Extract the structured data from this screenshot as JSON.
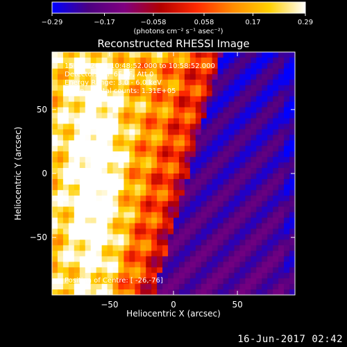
{
  "chart_data": {
    "type": "heatmap",
    "title": "Reconstructed RHESSI Image",
    "xlabel": "Heliocentric X (arcsec)",
    "ylabel": "Heliocentric Y (arcsec)",
    "xlim": [
      -95,
      95
    ],
    "ylim": [
      -95,
      95
    ],
    "x_ticks": [
      -50,
      0,
      50
    ],
    "y_ticks": [
      -50,
      0,
      50
    ],
    "x_tick_labels": [
      "−50",
      "0",
      "50"
    ],
    "y_tick_labels": [
      "−50",
      "0",
      "50"
    ],
    "colorbar": {
      "range": [
        -0.29,
        0.29
      ],
      "ticks": [
        -0.29,
        -0.17,
        -0.058,
        0.058,
        0.17,
        0.29
      ],
      "tick_labels": [
        "−0.29",
        "−0.17",
        "−0.058",
        "0.058",
        "0.17",
        "0.29"
      ],
      "unit_label": "(photons cm⁻² s⁻¹ asec⁻²)",
      "colors": [
        "#0000ff",
        "#4b0082",
        "#800080",
        "#b30000",
        "#ff2a00",
        "#ff8c00",
        "#ffd000",
        "#ffffff"
      ]
    },
    "annotations": [
      "15-Oct-2014 10:48:52.000 to 10:58:52.000",
      "Detectors: 3F 6F 9F, Att 0",
      "Energy Range: 3.0 - 6.0 keV",
      "Clean     Total counts: 1.31E+05",
      "Position of Centre: [ -26,-76]"
    ],
    "grid": false
  },
  "footer": {
    "timestamp": "16-Jun-2017 02:42"
  }
}
